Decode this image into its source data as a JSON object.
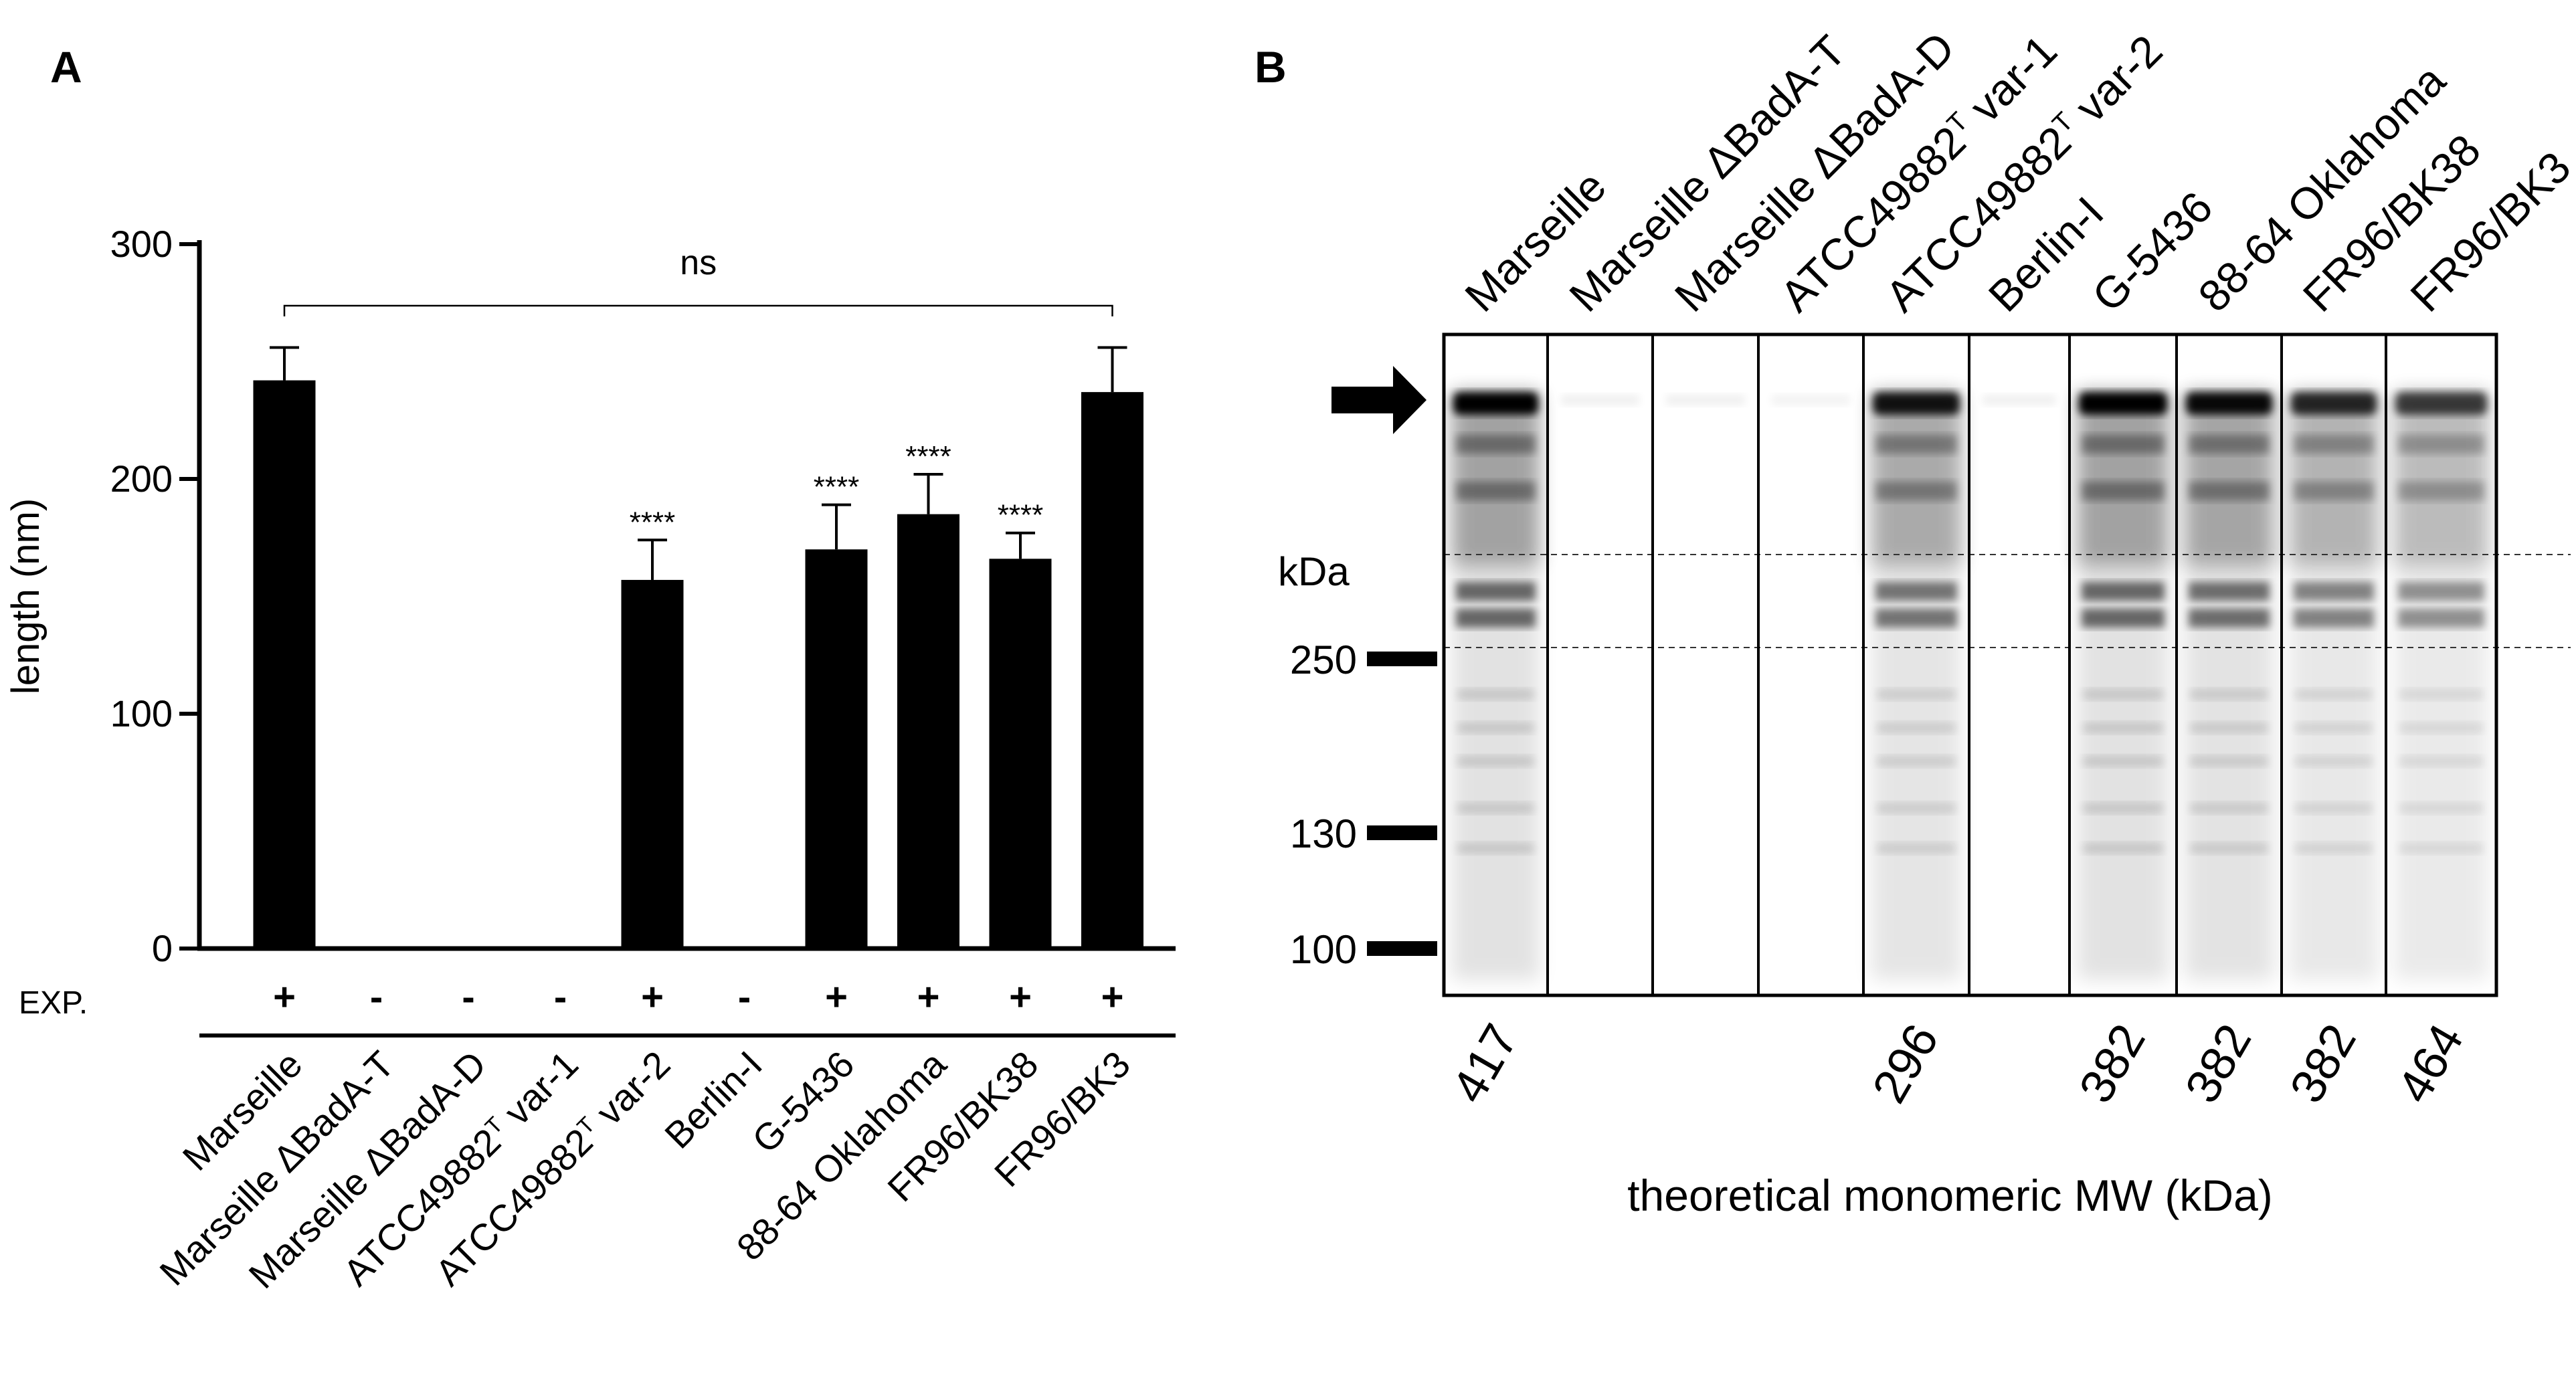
{
  "panel_labels": {
    "a": "A",
    "b": "B"
  },
  "chart_data": [
    {
      "type": "bar",
      "panel": "A",
      "ylabel": "length (nm)",
      "ylim": [
        0,
        300
      ],
      "yticks": [
        0,
        100,
        200,
        300
      ],
      "categories": [
        [
          "Marseille"
        ],
        [
          "Marseille ΔBadA-T"
        ],
        [
          "Marseille ΔBadA-D"
        ],
        [
          "ATCC49882",
          "T",
          " var-1"
        ],
        [
          "ATCC49882",
          "T",
          " var-2"
        ],
        [
          "Berlin-I"
        ],
        [
          "G-5436"
        ],
        [
          "88-64 Oklahoma"
        ],
        [
          "FR96/BK38"
        ],
        [
          "FR96/BK3"
        ]
      ],
      "values": [
        242,
        0,
        0,
        0,
        157,
        0,
        170,
        185,
        166,
        237
      ],
      "errors": [
        14,
        0,
        0,
        0,
        17,
        0,
        19,
        17,
        11,
        19
      ],
      "significance": [
        "",
        "",
        "",
        "",
        "****",
        "",
        "****",
        "****",
        "****",
        ""
      ],
      "bracket": {
        "from": 0,
        "to": 9,
        "label": "ns"
      },
      "exp_label": "EXP.",
      "exp": [
        "+",
        "-",
        "-",
        "-",
        "+",
        "-",
        "+",
        "+",
        "+",
        "+"
      ],
      "bar_color": "#000000"
    },
    {
      "type": "blot",
      "panel": "B",
      "lane_labels": [
        [
          "Marseille"
        ],
        [
          "Marseille ΔBadA-T"
        ],
        [
          "Marseille ΔBadA-D"
        ],
        [
          "ATCC49882",
          "T",
          " var-1"
        ],
        [
          "ATCC49882",
          "T",
          " var-2"
        ],
        [
          "Berlin-I"
        ],
        [
          "G-5436"
        ],
        [
          "88-64 Oklahoma"
        ],
        [
          "FR96/BK38"
        ],
        [
          "FR96/BK3"
        ]
      ],
      "marker_unit": "kDa",
      "markers": [
        250,
        130,
        100
      ],
      "theoretical_mw": [
        "417",
        "",
        "",
        "",
        "296",
        "",
        "382",
        "382",
        "382",
        "464"
      ],
      "xlabel": "theoretical monomeric MW (kDa)",
      "band_intensity": [
        1.0,
        0.05,
        0.05,
        0.04,
        0.9,
        0.05,
        1.0,
        0.95,
        0.8,
        0.7
      ]
    }
  ]
}
